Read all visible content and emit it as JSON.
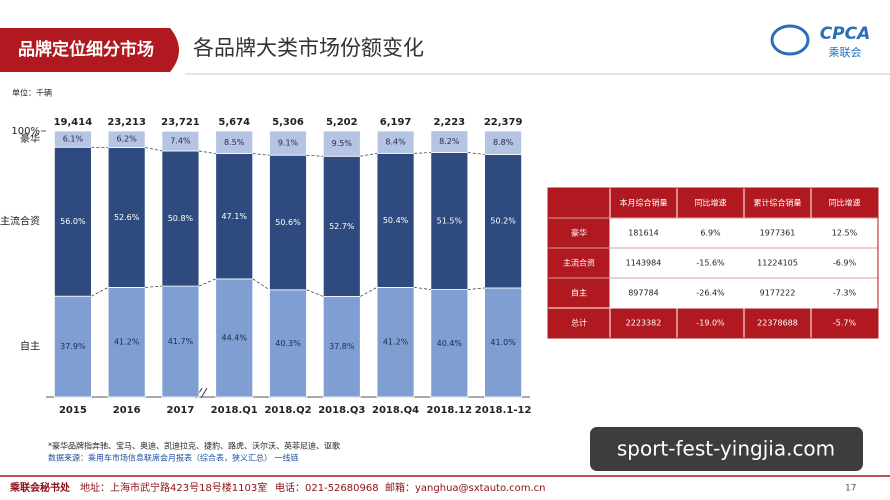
{
  "header": {
    "section": "品牌定位细分市场",
    "title": "各品牌大类市场份额变化",
    "logo": "CPCA",
    "logo_sub": "乘联会"
  },
  "chart_data": {
    "type": "bar",
    "stacked": true,
    "unit": "单位：千辆",
    "categories": [
      "2015",
      "2016",
      "2017",
      "2018.Q1",
      "2018.Q2",
      "2018.Q3",
      "2018.Q4",
      "2018.12",
      "2018.1-12"
    ],
    "series": [
      {
        "name": "自主",
        "color": "#7f9ed2",
        "values": [
          37.9,
          41.2,
          41.7,
          44.4,
          40.3,
          37.8,
          41.2,
          40.4,
          41.0
        ],
        "value_labels": [
          "37.9%",
          "41.2%",
          "41.7%",
          "44.4%",
          "40.3%",
          "37.8%",
          "41.2%",
          "40.4%",
          "41.0%"
        ]
      },
      {
        "name": "主流合资",
        "color": "#2f4a7e",
        "values": [
          56.0,
          52.6,
          50.8,
          47.1,
          50.6,
          52.7,
          50.4,
          51.5,
          50.2
        ],
        "value_labels": [
          "56.0%",
          "52.6%",
          "50.8%",
          "47.1%",
          "50.6%",
          "52.7%",
          "50.4%",
          "51.5%",
          "50.2%"
        ]
      },
      {
        "name": "豪华",
        "color": "#b4c4e2",
        "values": [
          6.1,
          6.2,
          7.4,
          8.5,
          9.1,
          9.5,
          8.4,
          8.2,
          8.8
        ],
        "value_labels": [
          "6.1%",
          "6.2%",
          "7.4%",
          "8.5%",
          "9.1%",
          "9.5%",
          "8.4%",
          "8.2%",
          "8.8%"
        ]
      }
    ],
    "totals": [
      {
        "value": 19414,
        "label": "19,414"
      },
      {
        "value": 23213,
        "label": "23,213"
      },
      {
        "value": 23721,
        "label": "23,721"
      },
      {
        "value": 5674,
        "label": "5,674"
      },
      {
        "value": 5306,
        "label": "5,306"
      },
      {
        "value": 5202,
        "label": "5,202"
      },
      {
        "value": 6197,
        "label": "6,197"
      },
      {
        "value": 2223,
        "label": "2,223"
      },
      {
        "value": 22379,
        "label": "22,379"
      }
    ],
    "ylim": [
      0,
      100
    ],
    "yticks": [
      {
        "value": 100,
        "label": "100%"
      }
    ]
  },
  "notes": [
    "*豪华品牌指奔驰、宝马、奥迪、凯迪拉克、捷豹、路虎、沃尔沃、英菲尼迪、讴歌",
    "数据来源：乘用车市场信息联席会月报表（综合表，狭义汇总）  一线链"
  ],
  "table": {
    "columns": [
      "本月综合销量",
      "同比增速",
      "累计综合销量",
      "同比增速"
    ],
    "rows": [
      {
        "label": "豪华",
        "cells": [
          "181614",
          "6.9%",
          "1977361",
          "12.5%"
        ]
      },
      {
        "label": "主流合资",
        "cells": [
          "1143984",
          "-15.6%",
          "11224105",
          "-6.9%"
        ]
      },
      {
        "label": "自主",
        "cells": [
          "897784",
          "-26.4%",
          "9177222",
          "-7.3%"
        ]
      },
      {
        "label": "总计",
        "cells": [
          "2223382",
          "-19.0%",
          "22378688",
          "-5.7%"
        ]
      }
    ]
  },
  "footer": {
    "org": "乘联会秘书处",
    "address": "地址：上海市武宁路423号18号楼1103室",
    "phone": "电话：021-52680968",
    "email": "邮箱：yanghua@sxtauto.com.cn",
    "page": "17"
  },
  "watermark": "sport-fest-yingjia.com"
}
